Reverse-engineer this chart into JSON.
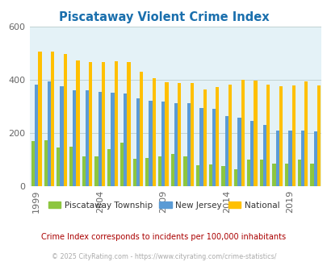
{
  "title": "Piscataway Violent Crime Index",
  "title_color": "#1a6fad",
  "years": [
    1999,
    2000,
    2001,
    2002,
    2003,
    2004,
    2005,
    2006,
    2007,
    2008,
    2009,
    2010,
    2011,
    2012,
    2013,
    2014,
    2015,
    2016,
    2017,
    2018,
    2019,
    2020,
    2021
  ],
  "piscataway": [
    170,
    172,
    145,
    150,
    112,
    112,
    138,
    165,
    103,
    105,
    112,
    120,
    112,
    80,
    82,
    75,
    65,
    100,
    100,
    85,
    85,
    100,
    85
  ],
  "new_jersey": [
    383,
    393,
    375,
    362,
    360,
    355,
    353,
    350,
    330,
    320,
    319,
    313,
    311,
    295,
    290,
    263,
    257,
    245,
    230,
    210,
    210,
    210,
    205
  ],
  "national": [
    507,
    507,
    498,
    474,
    467,
    468,
    469,
    467,
    430,
    405,
    392,
    387,
    387,
    365,
    373,
    383,
    400,
    398,
    383,
    375,
    378,
    395,
    380
  ],
  "piscataway_color": "#8dc63f",
  "nj_color": "#5b9bd5",
  "national_color": "#ffc000",
  "bg_color": "#e4f2f7",
  "ylim": [
    0,
    600
  ],
  "yticks": [
    0,
    200,
    400,
    600
  ],
  "subtitle": "Crime Index corresponds to incidents per 100,000 inhabitants",
  "subtitle_color": "#aa0000",
  "footer": "© 2025 CityRating.com - https://www.cityrating.com/crime-statistics/",
  "footer_color": "#aaaaaa",
  "bar_width": 0.27,
  "xtick_years": [
    1999,
    2004,
    2009,
    2014,
    2019
  ],
  "grid_color": "#bbcccc"
}
